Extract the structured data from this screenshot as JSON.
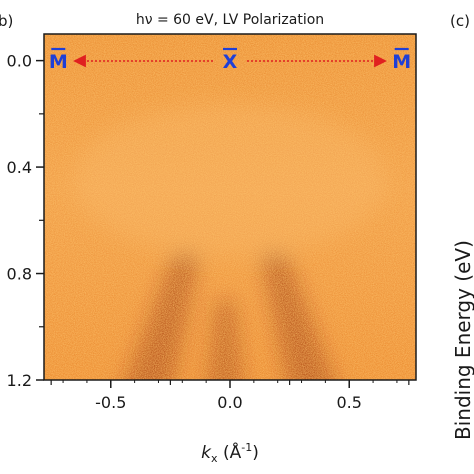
{
  "chart_data": {
    "type": "heatmap",
    "title": "hν = 60 eV, LV Polarization",
    "panel_left_label": "b)",
    "panel_right_label": "(c)",
    "right_axis_label": "Binding Energy (eV)",
    "xlabel": {
      "var": "k",
      "sub": "x",
      "unit": " (Å",
      "sup": "-1",
      "close": ")"
    },
    "xlim": [
      -0.78,
      0.78
    ],
    "ylim": [
      -0.1,
      1.2
    ],
    "xticks": [
      -0.5,
      0.0,
      0.5
    ],
    "xtick_labels": [
      "-0.5",
      "0.0",
      "0.5"
    ],
    "yticks": [
      0.0,
      0.4,
      0.8,
      1.2
    ],
    "ytick_labels": [
      "0.0",
      "0.4",
      "0.8",
      "1.2"
    ],
    "colormap": [
      "#f5b569",
      "#e47a1d",
      "#8a1e08"
    ],
    "background_color": "#e8892e",
    "symmetry_points": [
      {
        "label": "M",
        "k": -0.72,
        "color": "#1f3fd6"
      },
      {
        "label": "X",
        "k": 0.0,
        "color": "#1f3fd6"
      },
      {
        "label": "M",
        "k": 0.72,
        "color": "#1f3fd6"
      }
    ],
    "arrow_color": "#e02020",
    "bands": [
      {
        "name": "",
        "k_vertex": -0.18,
        "e_top": 0.72,
        "e_bottom": 1.2,
        "k_bottom": -0.36
      },
      {
        "name": "",
        "k_vertex": 0.18,
        "e_top": 0.72,
        "e_bottom": 1.2,
        "k_bottom": 0.36
      },
      {
        "name": "",
        "k_vertex": -0.02,
        "e_top": 0.9,
        "e_bottom": 1.2,
        "k_bottom": -0.02
      }
    ]
  }
}
